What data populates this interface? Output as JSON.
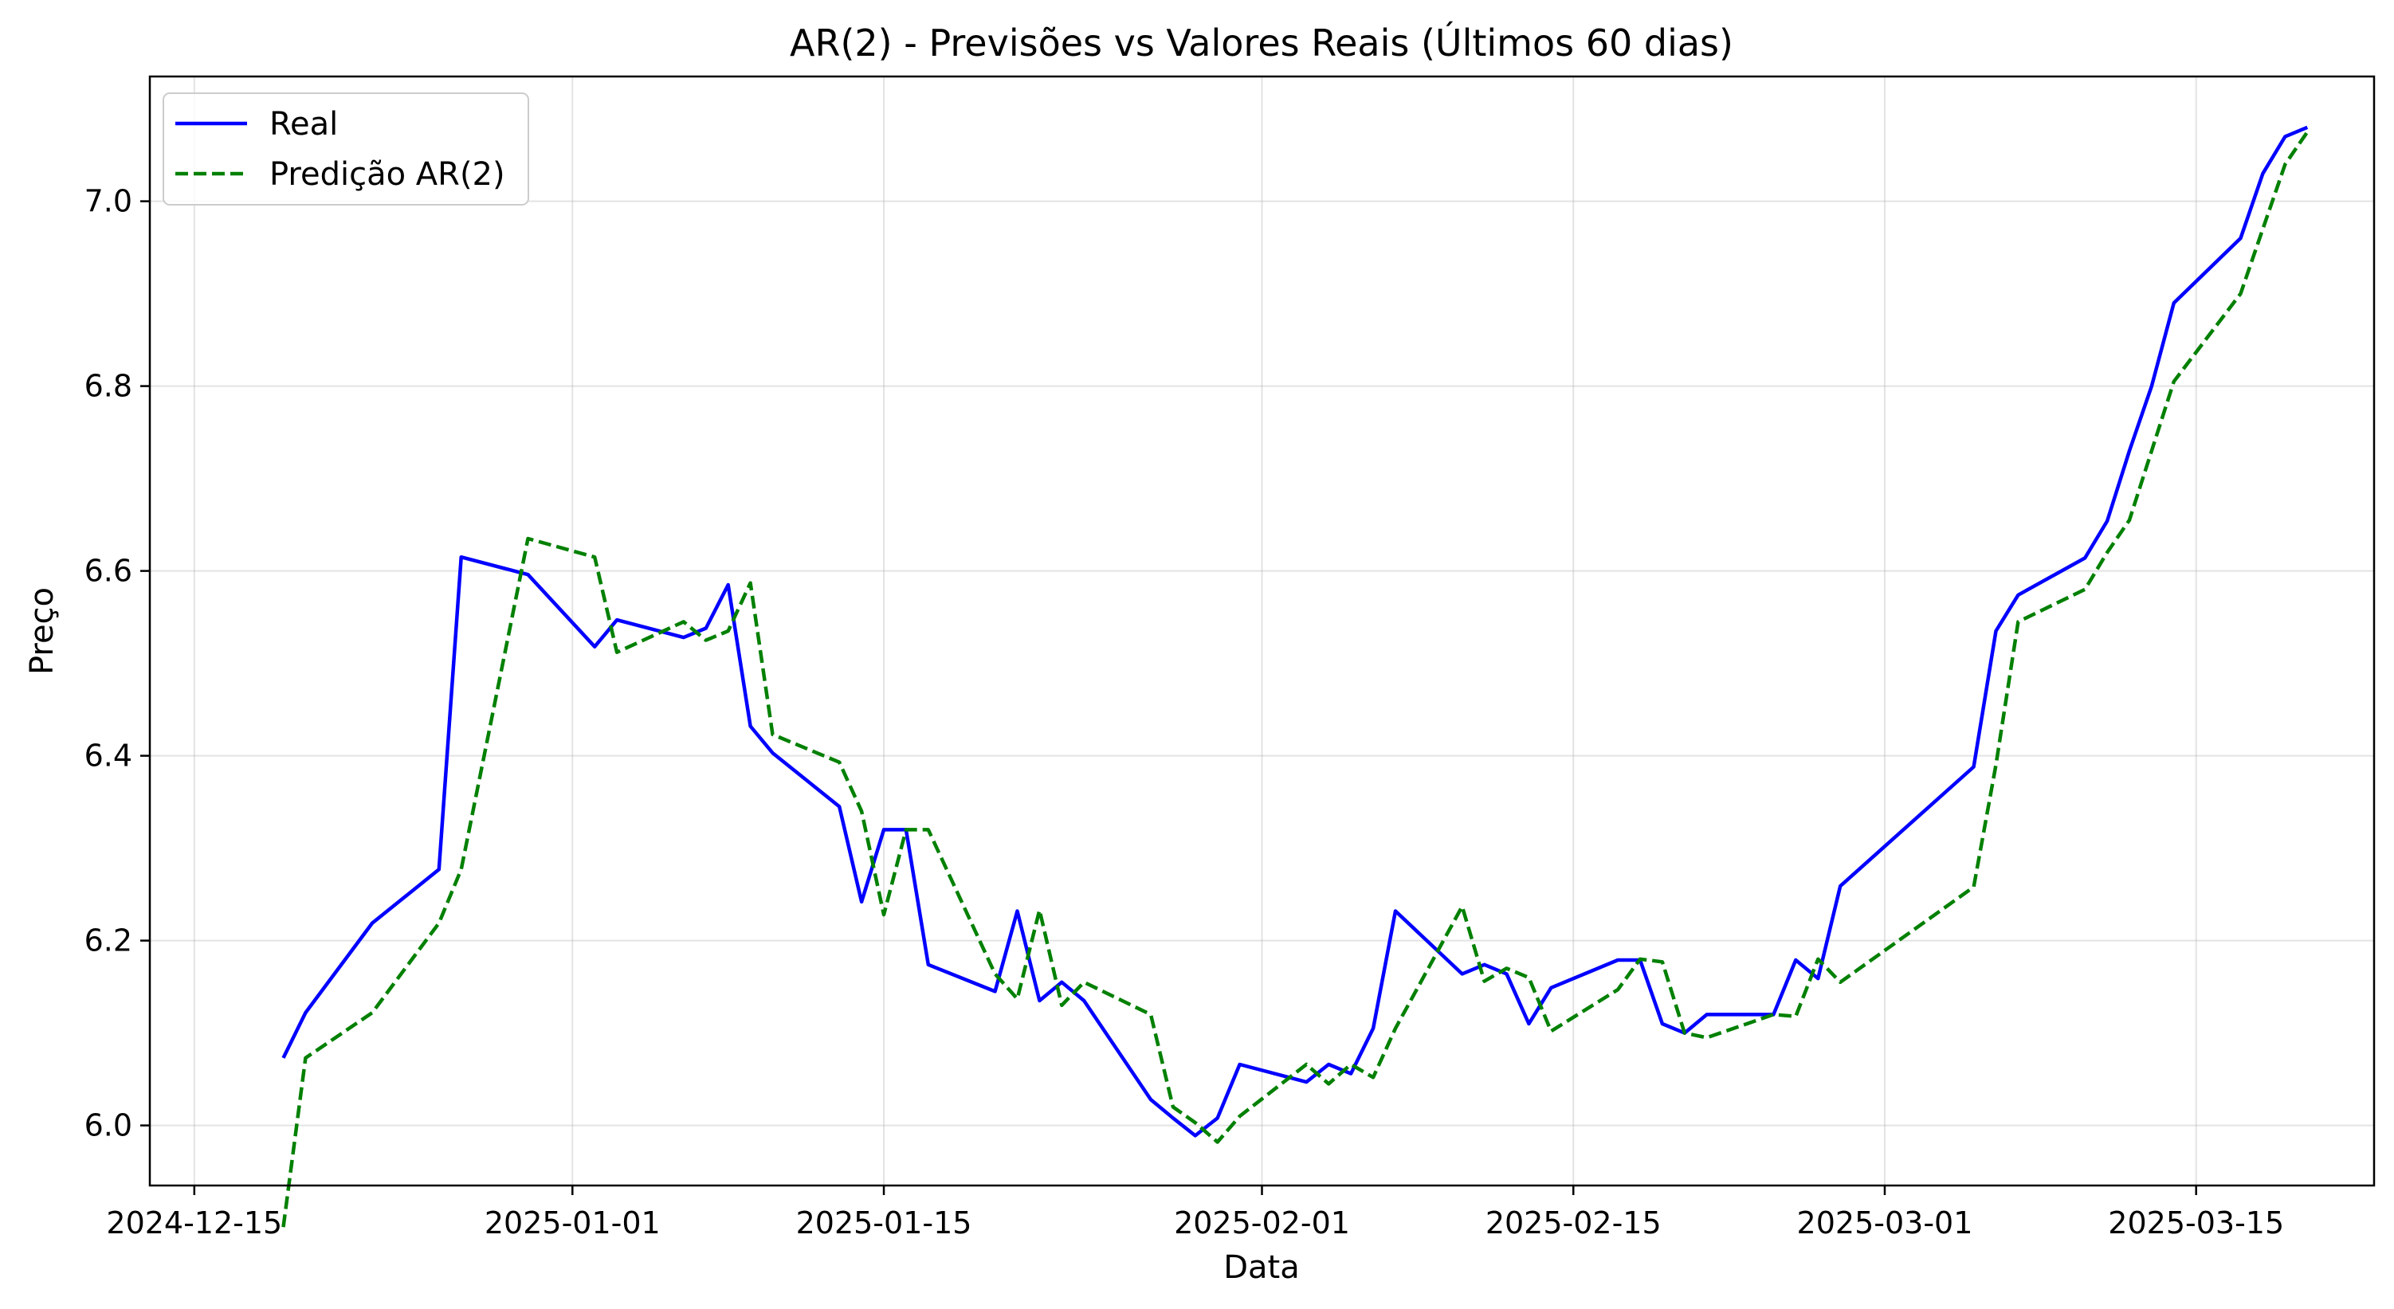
{
  "chart_data": {
    "type": "line",
    "title": "AR(2) - Previsões vs Valores Reais (Últimos 60 dias)",
    "xlabel": "Data",
    "ylabel": "Preço",
    "x_type": "date",
    "xlim": [
      "2024-12-13",
      "2025-03-23"
    ],
    "ylim": [
      5.935,
      7.135
    ],
    "grid": true,
    "legend_position": "upper-left",
    "x_ticks": [
      "2024-12-15",
      "2025-01-01",
      "2025-01-15",
      "2025-02-01",
      "2025-02-15",
      "2025-03-01",
      "2025-03-15"
    ],
    "y_ticks": [
      6.0,
      6.2,
      6.4,
      6.6,
      6.8,
      7.0
    ],
    "y_tick_labels": [
      "6.0",
      "6.2",
      "6.4",
      "6.6",
      "6.8",
      "7.0"
    ],
    "x": [
      "2024-12-19",
      "2024-12-20",
      "2024-12-23",
      "2024-12-26",
      "2024-12-27",
      "2024-12-30",
      "2025-01-02",
      "2025-01-03",
      "2025-01-06",
      "2025-01-07",
      "2025-01-08",
      "2025-01-09",
      "2025-01-10",
      "2025-01-13",
      "2025-01-14",
      "2025-01-15",
      "2025-01-16",
      "2025-01-17",
      "2025-01-20",
      "2025-01-21",
      "2025-01-22",
      "2025-01-23",
      "2025-01-24",
      "2025-01-27",
      "2025-01-28",
      "2025-01-29",
      "2025-01-30",
      "2025-01-31",
      "2025-02-03",
      "2025-02-04",
      "2025-02-05",
      "2025-02-06",
      "2025-02-07",
      "2025-02-10",
      "2025-02-11",
      "2025-02-12",
      "2025-02-13",
      "2025-02-14",
      "2025-02-17",
      "2025-02-18",
      "2025-02-19",
      "2025-02-20",
      "2025-02-21",
      "2025-02-24",
      "2025-02-25",
      "2025-02-26",
      "2025-02-27",
      "2025-03-05",
      "2025-03-06",
      "2025-03-07",
      "2025-03-10",
      "2025-03-11",
      "2025-03-12",
      "2025-03-13",
      "2025-03-14",
      "2025-03-17",
      "2025-03-18",
      "2025-03-19",
      "2025-03-20"
    ],
    "series": [
      {
        "name": "Real",
        "color": "#0000ff",
        "dash": "solid",
        "values": [
          6.073,
          6.122,
          6.219,
          6.277,
          6.615,
          6.596,
          6.518,
          6.547,
          6.528,
          6.538,
          6.585,
          6.432,
          6.403,
          6.345,
          6.242,
          6.32,
          6.32,
          6.174,
          6.145,
          6.232,
          6.135,
          6.155,
          6.135,
          6.028,
          6.008,
          5.989,
          6.008,
          6.066,
          6.047,
          6.066,
          6.056,
          6.105,
          6.232,
          6.164,
          6.174,
          6.164,
          6.11,
          6.149,
          6.179,
          6.179,
          6.11,
          6.1,
          6.12,
          6.12,
          6.179,
          6.159,
          6.259,
          6.388,
          6.535,
          6.574,
          6.614,
          6.654,
          6.73,
          6.8,
          6.89,
          6.96,
          7.03,
          7.07,
          7.08
        ]
      },
      {
        "name": "Predição AR(2)",
        "color": "#008000",
        "dash": "dashed",
        "values": [
          5.89,
          6.073,
          6.122,
          6.219,
          6.277,
          6.635,
          6.615,
          6.512,
          6.545,
          6.525,
          6.535,
          6.587,
          6.423,
          6.393,
          6.34,
          6.228,
          6.32,
          6.32,
          6.164,
          6.137,
          6.233,
          6.13,
          6.155,
          6.12,
          6.02,
          6.003,
          5.982,
          6.01,
          6.066,
          6.045,
          6.066,
          6.052,
          6.105,
          6.237,
          6.156,
          6.17,
          6.16,
          6.102,
          6.147,
          6.18,
          6.177,
          6.1,
          6.095,
          6.12,
          6.118,
          6.18,
          6.155,
          6.258,
          6.39,
          6.545,
          6.58,
          6.62,
          6.655,
          6.73,
          6.805,
          6.9,
          6.97,
          7.04,
          7.075
        ]
      }
    ]
  }
}
